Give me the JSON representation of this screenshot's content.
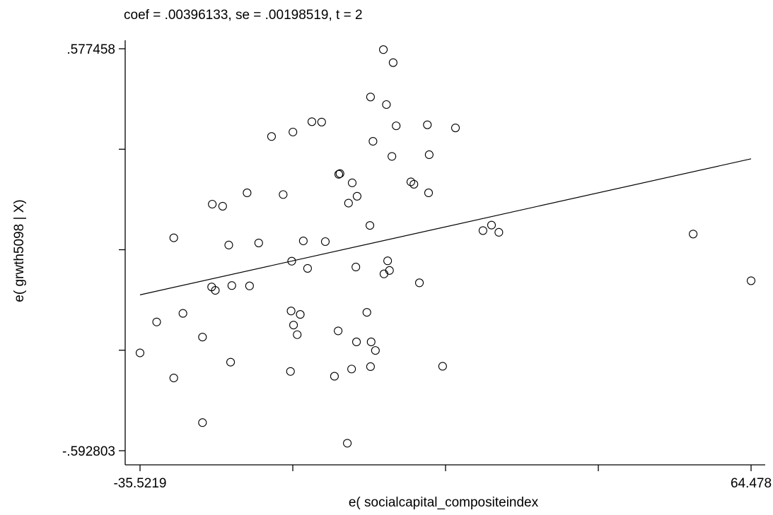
{
  "chart_data": {
    "type": "scatter",
    "title": "coef = .00396133, se = .00198519, t = 2",
    "xlabel": "e( socialcapital_compositeindex",
    "ylabel": "e( grwth5098 | X)",
    "xlim": [
      -35.5219,
      64.478
    ],
    "ylim": [
      -0.592803,
      0.577458
    ],
    "x_tick_labels": [
      "-35.5219",
      "64.478"
    ],
    "y_tick_labels": [
      ".577458",
      "-.592803"
    ],
    "x_ticks": [
      -35.5219,
      -10.5219,
      14.4781,
      39.4781,
      64.478
    ],
    "y_ticks": [
      -0.592803,
      -0.300238,
      -0.007673,
      0.284893,
      0.577458
    ],
    "grid": false,
    "fit_line": {
      "slope": 0.00396133,
      "endpoints": [
        [
          -35.5219,
          -0.139
        ],
        [
          64.478,
          0.257
        ]
      ]
    },
    "points": [
      [
        4.3,
        0.575
      ],
      [
        5.9,
        0.537
      ],
      [
        2.2,
        0.437
      ],
      [
        4.8,
        0.415
      ],
      [
        -10.5,
        0.335
      ],
      [
        -14.0,
        0.322
      ],
      [
        -5.8,
        0.364
      ],
      [
        -7.4,
        0.365
      ],
      [
        -23.7,
        0.125
      ],
      [
        -22.0,
        0.119
      ],
      [
        -30.0,
        0.027
      ],
      [
        -8.8,
        0.018
      ],
      [
        11.5,
        0.356
      ],
      [
        16.1,
        0.347
      ],
      [
        -12.1,
        0.153
      ],
      [
        2.6,
        0.308
      ],
      [
        11.8,
        0.269
      ],
      [
        6.4,
        0.353
      ],
      [
        5.7,
        0.264
      ],
      [
        -2.8,
        0.214
      ],
      [
        -3.0,
        0.212
      ],
      [
        -23.8,
        -0.116
      ],
      [
        -21.0,
        0.006
      ],
      [
        -23.2,
        -0.126
      ],
      [
        -16.1,
        0.012
      ],
      [
        -17.6,
        -0.113
      ],
      [
        -20.5,
        -0.112
      ],
      [
        -18.0,
        0.158
      ],
      [
        -10.7,
        -0.041
      ],
      [
        -8.1,
        -0.062
      ],
      [
        -1.4,
        0.128
      ],
      [
        -0.2,
        -0.058
      ],
      [
        0.0,
        0.148
      ],
      [
        -0.8,
        0.187
      ],
      [
        8.8,
        0.19
      ],
      [
        9.3,
        0.183
      ],
      [
        11.7,
        0.158
      ],
      [
        20.6,
        0.048
      ],
      [
        2.1,
        0.063
      ],
      [
        23.2,
        0.043
      ],
      [
        22.0,
        0.064
      ],
      [
        4.4,
        -0.078
      ],
      [
        5.0,
        -0.04
      ],
      [
        10.2,
        -0.104
      ],
      [
        -10.8,
        -0.186
      ],
      [
        -9.3,
        -0.196
      ],
      [
        1.6,
        -0.19
      ],
      [
        -0.1,
        -0.276
      ],
      [
        2.3,
        -0.276
      ],
      [
        3.0,
        -0.301
      ],
      [
        -10.9,
        -0.362
      ],
      [
        -0.9,
        -0.355
      ],
      [
        -28.5,
        -0.193
      ],
      [
        -32.8,
        -0.218
      ],
      [
        -25.3,
        -0.262
      ],
      [
        -35.5219,
        -0.308
      ],
      [
        -20.7,
        -0.335
      ],
      [
        -30.0,
        -0.381
      ],
      [
        -3.7,
        -0.376
      ],
      [
        2.2,
        -0.348
      ],
      [
        14.0,
        -0.347
      ],
      [
        -10.4,
        -0.227
      ],
      [
        -9.8,
        -0.255
      ],
      [
        -3.1,
        -0.244
      ],
      [
        -5.2,
        0.016
      ],
      [
        55.0,
        0.038
      ],
      [
        64.478,
        -0.098
      ],
      [
        5.3,
        -0.068
      ],
      [
        -1.6,
        -0.571
      ],
      [
        -25.3,
        -0.511
      ]
    ]
  }
}
